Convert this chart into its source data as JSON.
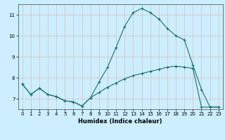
{
  "title": "",
  "xlabel": "Humidex (Indice chaleur)",
  "bg_color": "#cceeff",
  "grid_color_major": "#ddbbbb",
  "line_color": "#1a7070",
  "xlim": [
    -0.5,
    23.5
  ],
  "ylim": [
    6.5,
    11.5
  ],
  "xticks": [
    0,
    1,
    2,
    3,
    4,
    5,
    6,
    7,
    8,
    9,
    10,
    11,
    12,
    13,
    14,
    15,
    16,
    17,
    18,
    19,
    20,
    21,
    22,
    23
  ],
  "yticks": [
    7,
    8,
    9,
    10,
    11
  ],
  "line1_x": [
    0,
    1,
    2,
    3,
    4,
    5,
    6,
    7,
    8,
    9,
    10,
    11,
    12,
    13,
    14,
    15,
    16,
    17,
    18,
    19,
    20,
    21,
    22,
    23
  ],
  "line1_y": [
    7.7,
    7.2,
    7.5,
    7.2,
    7.1,
    6.9,
    6.85,
    6.65,
    7.05,
    7.8,
    8.5,
    9.45,
    10.45,
    11.1,
    11.3,
    11.1,
    10.8,
    10.35,
    10.0,
    9.8,
    8.6,
    7.45,
    6.6,
    6.6
  ],
  "line2_x": [
    0,
    1,
    2,
    3,
    4,
    5,
    6,
    7,
    8,
    9,
    10,
    11,
    12,
    13,
    14,
    15,
    16,
    17,
    18,
    19,
    20,
    21,
    22,
    23
  ],
  "line2_y": [
    7.7,
    7.2,
    7.5,
    7.2,
    7.1,
    6.9,
    6.85,
    6.65,
    7.05,
    7.3,
    7.55,
    7.75,
    7.95,
    8.1,
    8.2,
    8.3,
    8.4,
    8.5,
    8.55,
    8.5,
    8.45,
    6.6,
    6.6,
    6.6
  ],
  "marker": "+",
  "markersize": 3.0,
  "linewidth": 0.8,
  "tick_fontsize": 5.0,
  "xlabel_fontsize": 6.0
}
